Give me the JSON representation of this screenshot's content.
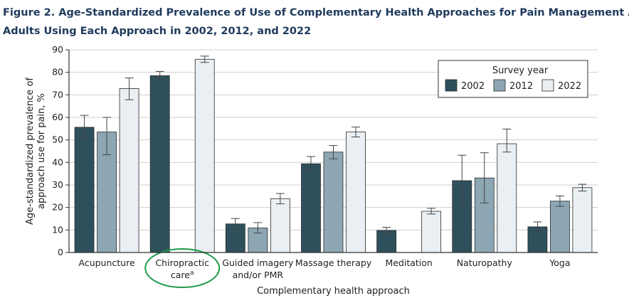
{
  "figure": {
    "title_line1": "Figure 2.  Age-Standardized Prevalence of Use of Complementary Health Approaches for Pain Management Among",
    "title_line2": "Adults Using Each Approach in 2002, 2012, and 2022"
  },
  "chart_data": {
    "type": "bar",
    "title": "Age-Standardized Prevalence of Use of Complementary Health Approaches for Pain Management Among Adults Using Each Approach in 2002, 2012, and 2022",
    "xlabel": "Complementary health approach",
    "ylabel_line1": "Age-standardized prevalence of",
    "ylabel_line2": "approach use for pain, %",
    "ylim": [
      0,
      90
    ],
    "yticks": [
      0,
      10,
      20,
      30,
      40,
      50,
      60,
      70,
      80,
      90
    ],
    "grid": true,
    "legend": {
      "title": "Survey year",
      "placement": "top-right"
    },
    "categories": [
      {
        "line1": "Acupuncture",
        "line2": ""
      },
      {
        "line1": "Chiropractic",
        "line2": "care",
        "sup": "a",
        "highlighted": true
      },
      {
        "line1": "Guided imagery",
        "line2": "and/or PMR"
      },
      {
        "line1": "Massage therapy",
        "line2": ""
      },
      {
        "line1": "Meditation",
        "line2": ""
      },
      {
        "line1": "Naturopathy",
        "line2": ""
      },
      {
        "line1": "Yoga",
        "line2": ""
      }
    ],
    "series": [
      {
        "name": "2002",
        "color": "#2e505c",
        "values": [
          55.6,
          78.5,
          12.7,
          39.4,
          9.8,
          31.9,
          11.4
        ],
        "lower": [
          50.3,
          76.8,
          10.3,
          36.5,
          8.6,
          20.7,
          9.4
        ],
        "upper": [
          60.9,
          80.4,
          15.1,
          42.6,
          11.2,
          43.2,
          13.6
        ]
      },
      {
        "name": "2012",
        "color": "#8ca6b3",
        "values": [
          53.5,
          null,
          10.9,
          44.6,
          null,
          33.1,
          22.8
        ],
        "lower": [
          43.4,
          null,
          8.6,
          41.6,
          null,
          22.0,
          20.5
        ],
        "upper": [
          60.0,
          null,
          13.3,
          47.5,
          null,
          44.3,
          25.1
        ]
      },
      {
        "name": "2022",
        "color": "#e9eff3",
        "values": [
          72.8,
          85.8,
          23.9,
          53.5,
          18.3,
          48.3,
          28.8
        ],
        "lower": [
          67.8,
          84.4,
          21.6,
          51.3,
          17.1,
          44.6,
          27.3
        ],
        "upper": [
          77.5,
          87.2,
          26.2,
          55.7,
          19.6,
          54.8,
          30.3
        ]
      }
    ]
  }
}
